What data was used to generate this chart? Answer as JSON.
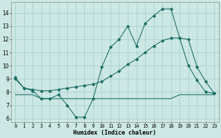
{
  "xlabel": "Humidex (Indice chaleur)",
  "background_color": "#cce8e4",
  "grid_color": "#aad4cc",
  "line_color": "#1a6e64",
  "xlim": [
    -0.5,
    23.5
  ],
  "ylim": [
    5.7,
    14.8
  ],
  "yticks": [
    6,
    7,
    8,
    9,
    10,
    11,
    12,
    13,
    14
  ],
  "xticks": [
    0,
    1,
    2,
    3,
    4,
    5,
    6,
    7,
    8,
    9,
    10,
    11,
    12,
    13,
    14,
    15,
    16,
    17,
    18,
    19,
    20,
    21,
    22,
    23
  ],
  "line1_x": [
    0,
    1,
    2,
    3,
    4,
    5,
    6,
    7,
    8,
    9,
    10,
    11,
    12,
    13,
    14,
    15,
    16,
    17,
    18,
    19,
    20,
    21,
    22,
    23
  ],
  "line1_y": [
    9.1,
    8.3,
    8.1,
    7.5,
    7.5,
    7.8,
    7.0,
    6.1,
    6.1,
    7.5,
    9.9,
    11.4,
    12.0,
    13.0,
    11.5,
    13.2,
    13.8,
    14.3,
    14.3,
    12.1,
    10.0,
    8.9,
    8.0,
    7.9
  ],
  "line2_x": [
    0,
    1,
    2,
    3,
    4,
    5,
    6,
    7,
    8,
    9,
    10,
    11,
    12,
    13,
    14,
    15,
    16,
    17,
    18,
    19,
    20,
    21,
    22,
    23
  ],
  "line2_y": [
    9.0,
    8.3,
    8.2,
    8.1,
    8.1,
    8.2,
    8.3,
    8.4,
    8.5,
    8.6,
    8.8,
    9.2,
    9.6,
    10.1,
    10.5,
    11.0,
    11.5,
    11.9,
    12.1,
    12.1,
    12.0,
    9.9,
    8.8,
    7.9
  ],
  "line3_x": [
    0,
    1,
    2,
    3,
    4,
    5,
    6,
    7,
    8,
    9,
    10,
    11,
    12,
    13,
    14,
    15,
    16,
    17,
    18,
    19,
    20,
    21,
    22,
    23
  ],
  "line3_y": [
    7.8,
    7.8,
    7.8,
    7.5,
    7.5,
    7.5,
    7.5,
    7.5,
    7.5,
    7.5,
    7.5,
    7.5,
    7.5,
    7.5,
    7.5,
    7.5,
    7.5,
    7.5,
    7.5,
    7.8,
    7.8,
    7.8,
    7.8,
    7.8
  ]
}
